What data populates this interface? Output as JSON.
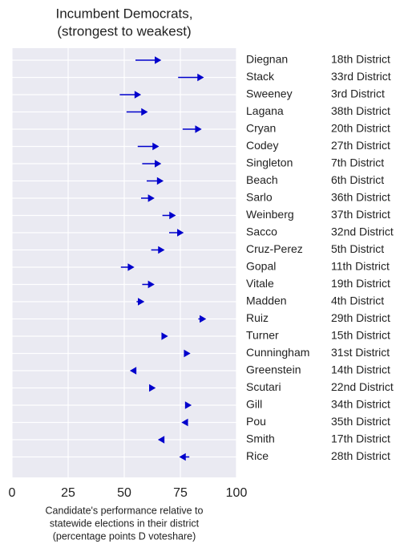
{
  "chart_data": {
    "type": "arrow",
    "title": [
      "Incumbent Democrats,",
      "(strongest to weakest)"
    ],
    "xlabel": [
      "Candidate's performance relative to",
      "statewide elections in their district",
      "(percentage points D voteshare)"
    ],
    "categories": [
      "Diegnan",
      "Stack",
      "Sweeney",
      "Lagana",
      "Cryan",
      "Codey",
      "Singleton",
      "Beach",
      "Sarlo",
      "Weinberg",
      "Sacco",
      "Cruz-Perez",
      "Gopal",
      "Vitale",
      "Madden",
      "Ruiz",
      "Turner",
      "Cunningham",
      "Greenstein",
      "Scutari",
      "Gill",
      "Pou",
      "Smith",
      "Rice"
    ],
    "districts": [
      "18th District",
      "33rd District",
      "3rd District",
      "38th District",
      "20th District",
      "27th District",
      "7th District",
      "6th District",
      "36th District",
      "37th District",
      "32nd District",
      "5th District",
      "11th District",
      "19th District",
      "4th District",
      "29th District",
      "15th District",
      "31st District",
      "14th District",
      "22nd District",
      "34th District",
      "35th District",
      "17th District",
      "28th District"
    ],
    "start": [
      55,
      74,
      48,
      51,
      76,
      56,
      58,
      60,
      57.5,
      67,
      70,
      62,
      48.5,
      58,
      55.5,
      83,
      67,
      77,
      54,
      62.5,
      79,
      77,
      66,
      79
    ],
    "end": [
      66,
      85,
      57,
      60,
      84,
      65,
      66,
      67,
      63,
      72.5,
      76,
      67.5,
      54,
      63,
      58.5,
      86,
      69,
      79,
      53,
      63.5,
      79.5,
      76,
      65.5,
      75
    ],
    "color": "#0000cc",
    "xlim": [
      0,
      100
    ],
    "xticks": [
      0,
      25,
      50,
      75,
      100
    ],
    "grid": true
  }
}
